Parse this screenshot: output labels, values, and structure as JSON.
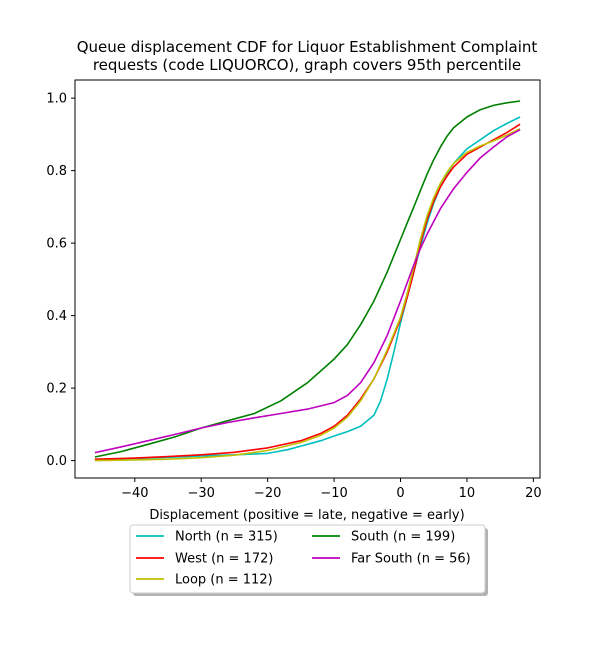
{
  "chart_data": {
    "type": "line",
    "title_lines": [
      "Queue displacement CDF for Liquor Establishment Complaint",
      "requests (code LIQUORCO), graph covers 95th percentile"
    ],
    "xlabel": "Displacement (positive = late, negative = early)",
    "ylabel": "",
    "xlim": [
      -49,
      21
    ],
    "ylim": [
      -0.048,
      1.05
    ],
    "xticks": [
      -40,
      -30,
      -20,
      -10,
      0,
      10,
      20
    ],
    "yticks": [
      0.0,
      0.2,
      0.4,
      0.6,
      0.8,
      1.0
    ],
    "xtick_labels": [
      "−40",
      "−30",
      "−20",
      "−10",
      "0",
      "10",
      "20"
    ],
    "ytick_labels": [
      "0.0",
      "0.2",
      "0.4",
      "0.6",
      "0.8",
      "1.0"
    ],
    "grid": false,
    "legend_position": "below plot, two columns",
    "series": [
      {
        "name": "North (n = 315)",
        "color": "#00bfbf",
        "points": [
          [
            -46,
            0.003
          ],
          [
            -40,
            0.006
          ],
          [
            -35,
            0.009
          ],
          [
            -30,
            0.013
          ],
          [
            -25,
            0.016
          ],
          [
            -20,
            0.02
          ],
          [
            -17,
            0.03
          ],
          [
            -15,
            0.04
          ],
          [
            -12,
            0.055
          ],
          [
            -10,
            0.068
          ],
          [
            -8,
            0.08
          ],
          [
            -6,
            0.095
          ],
          [
            -4,
            0.125
          ],
          [
            -3,
            0.165
          ],
          [
            -2,
            0.225
          ],
          [
            -1,
            0.3
          ],
          [
            0,
            0.38
          ],
          [
            1,
            0.45
          ],
          [
            2,
            0.52
          ],
          [
            3,
            0.59
          ],
          [
            4,
            0.655
          ],
          [
            5,
            0.71
          ],
          [
            6,
            0.755
          ],
          [
            7,
            0.79
          ],
          [
            8,
            0.82
          ],
          [
            9,
            0.84
          ],
          [
            10,
            0.86
          ],
          [
            12,
            0.885
          ],
          [
            14,
            0.91
          ],
          [
            16,
            0.93
          ],
          [
            18,
            0.948
          ]
        ]
      },
      {
        "name": "West (n = 172)",
        "color": "#ff0000",
        "points": [
          [
            -46,
            0.004
          ],
          [
            -40,
            0.007
          ],
          [
            -35,
            0.011
          ],
          [
            -30,
            0.016
          ],
          [
            -25,
            0.023
          ],
          [
            -20,
            0.035
          ],
          [
            -15,
            0.055
          ],
          [
            -12,
            0.075
          ],
          [
            -10,
            0.095
          ],
          [
            -8,
            0.125
          ],
          [
            -6,
            0.17
          ],
          [
            -4,
            0.225
          ],
          [
            -2,
            0.3
          ],
          [
            0,
            0.39
          ],
          [
            1,
            0.45
          ],
          [
            2,
            0.52
          ],
          [
            3,
            0.6
          ],
          [
            4,
            0.665
          ],
          [
            5,
            0.715
          ],
          [
            6,
            0.755
          ],
          [
            7,
            0.785
          ],
          [
            8,
            0.81
          ],
          [
            10,
            0.845
          ],
          [
            12,
            0.865
          ],
          [
            14,
            0.885
          ],
          [
            16,
            0.905
          ],
          [
            18,
            0.928
          ]
        ]
      },
      {
        "name": "Loop (n = 112)",
        "color": "#bfbf00",
        "points": [
          [
            -46,
            0.0
          ],
          [
            -40,
            0.002
          ],
          [
            -35,
            0.004
          ],
          [
            -30,
            0.008
          ],
          [
            -25,
            0.015
          ],
          [
            -20,
            0.028
          ],
          [
            -15,
            0.05
          ],
          [
            -12,
            0.07
          ],
          [
            -10,
            0.09
          ],
          [
            -8,
            0.12
          ],
          [
            -6,
            0.165
          ],
          [
            -4,
            0.225
          ],
          [
            -2,
            0.305
          ],
          [
            0,
            0.395
          ],
          [
            1,
            0.46
          ],
          [
            2,
            0.535
          ],
          [
            3,
            0.61
          ],
          [
            4,
            0.675
          ],
          [
            5,
            0.725
          ],
          [
            6,
            0.765
          ],
          [
            7,
            0.795
          ],
          [
            8,
            0.82
          ],
          [
            10,
            0.85
          ],
          [
            12,
            0.868
          ],
          [
            14,
            0.882
          ],
          [
            16,
            0.898
          ],
          [
            18,
            0.915
          ]
        ]
      },
      {
        "name": "South (n = 199)",
        "color": "#008000",
        "points": [
          [
            -46,
            0.01
          ],
          [
            -42,
            0.025
          ],
          [
            -38,
            0.045
          ],
          [
            -34,
            0.065
          ],
          [
            -30,
            0.09
          ],
          [
            -26,
            0.11
          ],
          [
            -22,
            0.13
          ],
          [
            -18,
            0.165
          ],
          [
            -14,
            0.215
          ],
          [
            -10,
            0.28
          ],
          [
            -8,
            0.32
          ],
          [
            -6,
            0.375
          ],
          [
            -4,
            0.44
          ],
          [
            -2,
            0.52
          ],
          [
            0,
            0.61
          ],
          [
            1,
            0.655
          ],
          [
            2,
            0.7
          ],
          [
            3,
            0.745
          ],
          [
            4,
            0.79
          ],
          [
            5,
            0.83
          ],
          [
            6,
            0.865
          ],
          [
            7,
            0.895
          ],
          [
            8,
            0.918
          ],
          [
            10,
            0.948
          ],
          [
            12,
            0.968
          ],
          [
            14,
            0.98
          ],
          [
            16,
            0.987
          ],
          [
            18,
            0.992
          ]
        ]
      },
      {
        "name": "Far South (n = 56)",
        "color": "#bf00bf",
        "points": [
          [
            -46,
            0.022
          ],
          [
            -42,
            0.038
          ],
          [
            -38,
            0.055
          ],
          [
            -34,
            0.072
          ],
          [
            -30,
            0.09
          ],
          [
            -26,
            0.105
          ],
          [
            -22,
            0.118
          ],
          [
            -18,
            0.13
          ],
          [
            -14,
            0.142
          ],
          [
            -10,
            0.16
          ],
          [
            -8,
            0.18
          ],
          [
            -6,
            0.215
          ],
          [
            -4,
            0.27
          ],
          [
            -2,
            0.345
          ],
          [
            0,
            0.44
          ],
          [
            1,
            0.49
          ],
          [
            2,
            0.54
          ],
          [
            3,
            0.585
          ],
          [
            4,
            0.625
          ],
          [
            6,
            0.695
          ],
          [
            8,
            0.75
          ],
          [
            10,
            0.795
          ],
          [
            12,
            0.835
          ],
          [
            14,
            0.865
          ],
          [
            16,
            0.893
          ],
          [
            18,
            0.913
          ]
        ]
      }
    ]
  }
}
